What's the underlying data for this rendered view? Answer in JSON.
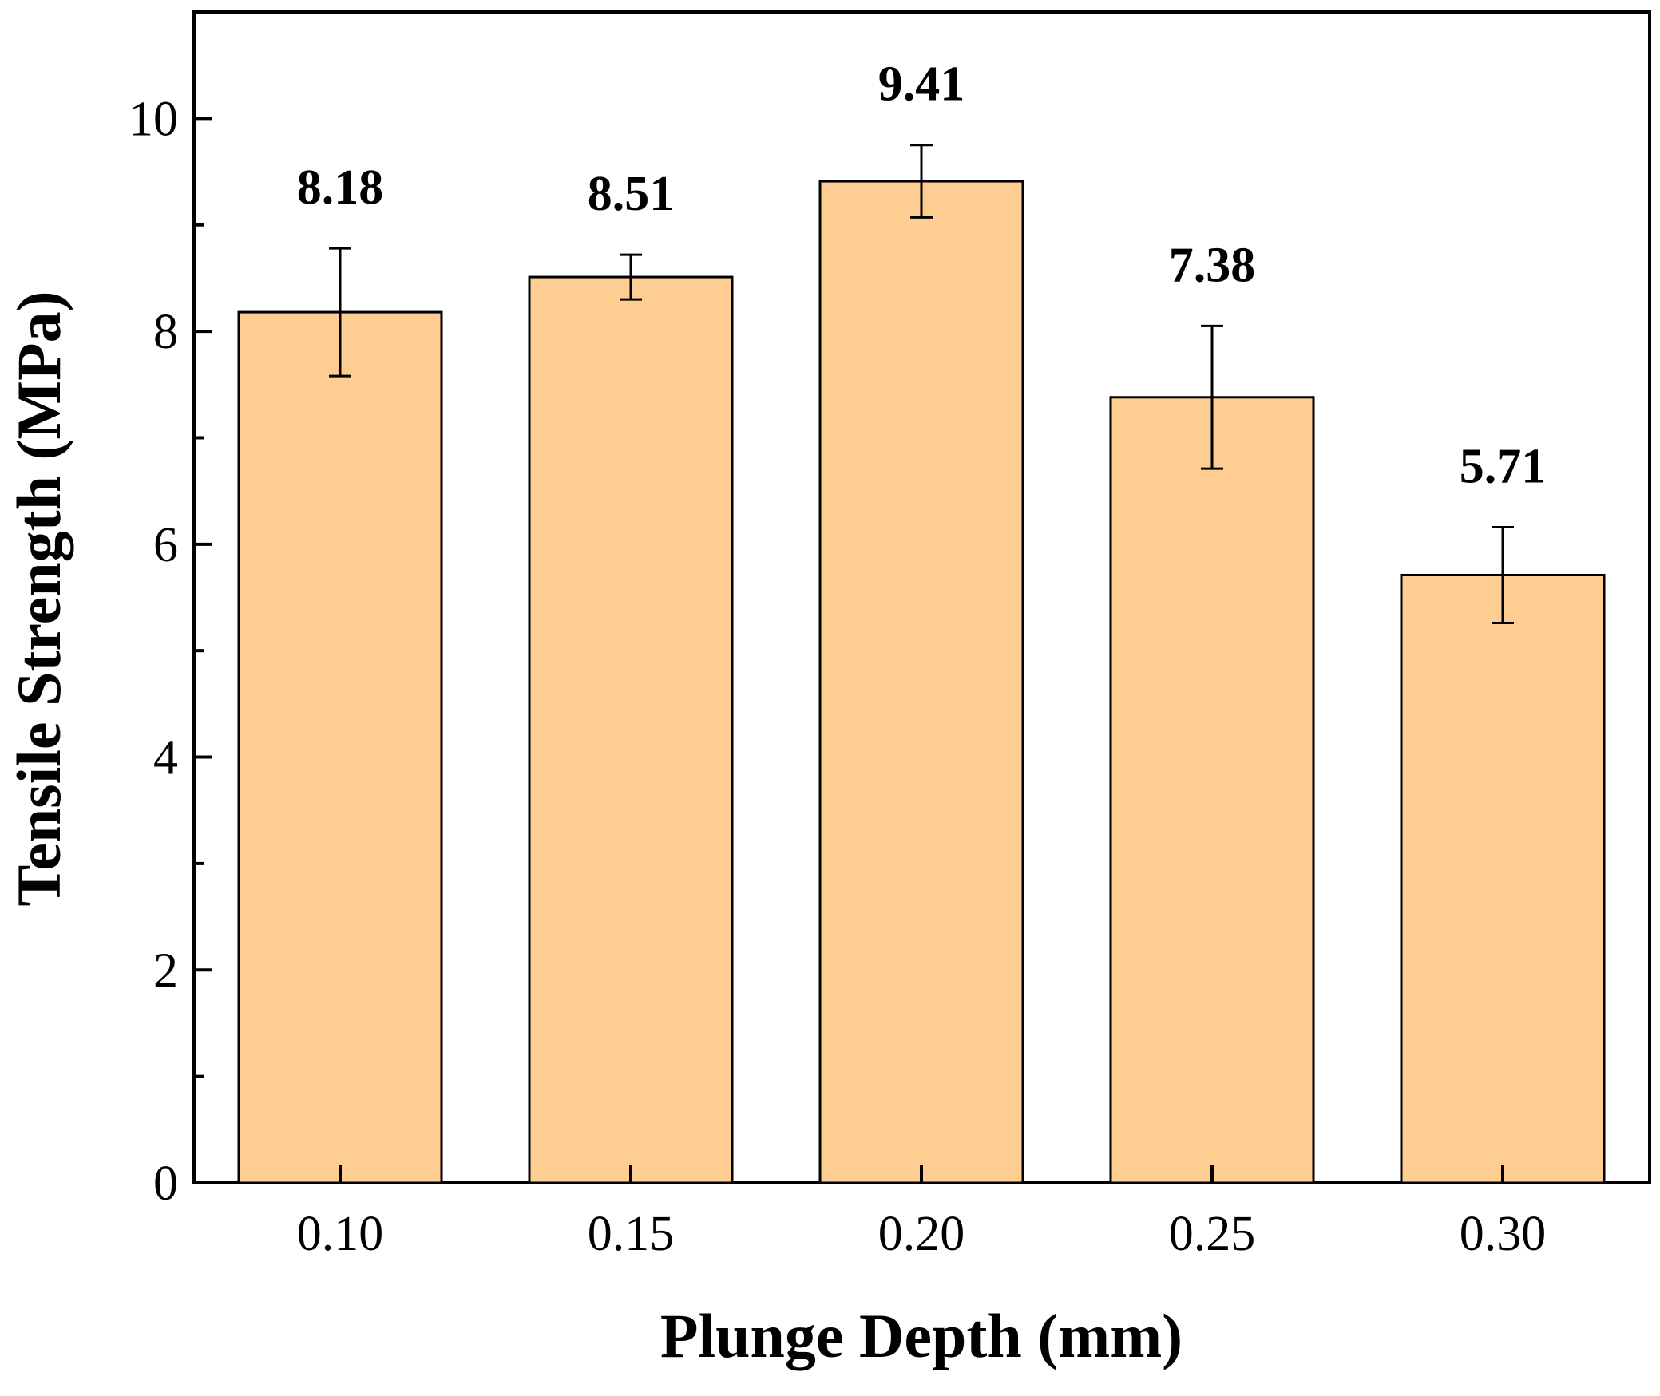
{
  "chart_data": {
    "type": "bar",
    "title": "",
    "xlabel": "Plunge Depth (mm)",
    "ylabel": "Tensile Strength (MPa)",
    "categories": [
      "0.10",
      "0.15",
      "0.20",
      "0.25",
      "0.30"
    ],
    "values": [
      8.18,
      8.51,
      9.41,
      7.38,
      5.71
    ],
    "errors": [
      0.6,
      0.21,
      0.34,
      0.67,
      0.45
    ],
    "data_labels": [
      "8.18",
      "8.51",
      "9.41",
      "7.38",
      "5.71"
    ],
    "ylim": [
      0,
      11
    ],
    "yticks": [
      0,
      2,
      4,
      6,
      8,
      10
    ],
    "ytick_labels": [
      "0",
      "2",
      "4",
      "6",
      "8",
      "10"
    ],
    "grid": false,
    "bar_color": "#FDCD92",
    "edge_color": "#000000"
  }
}
